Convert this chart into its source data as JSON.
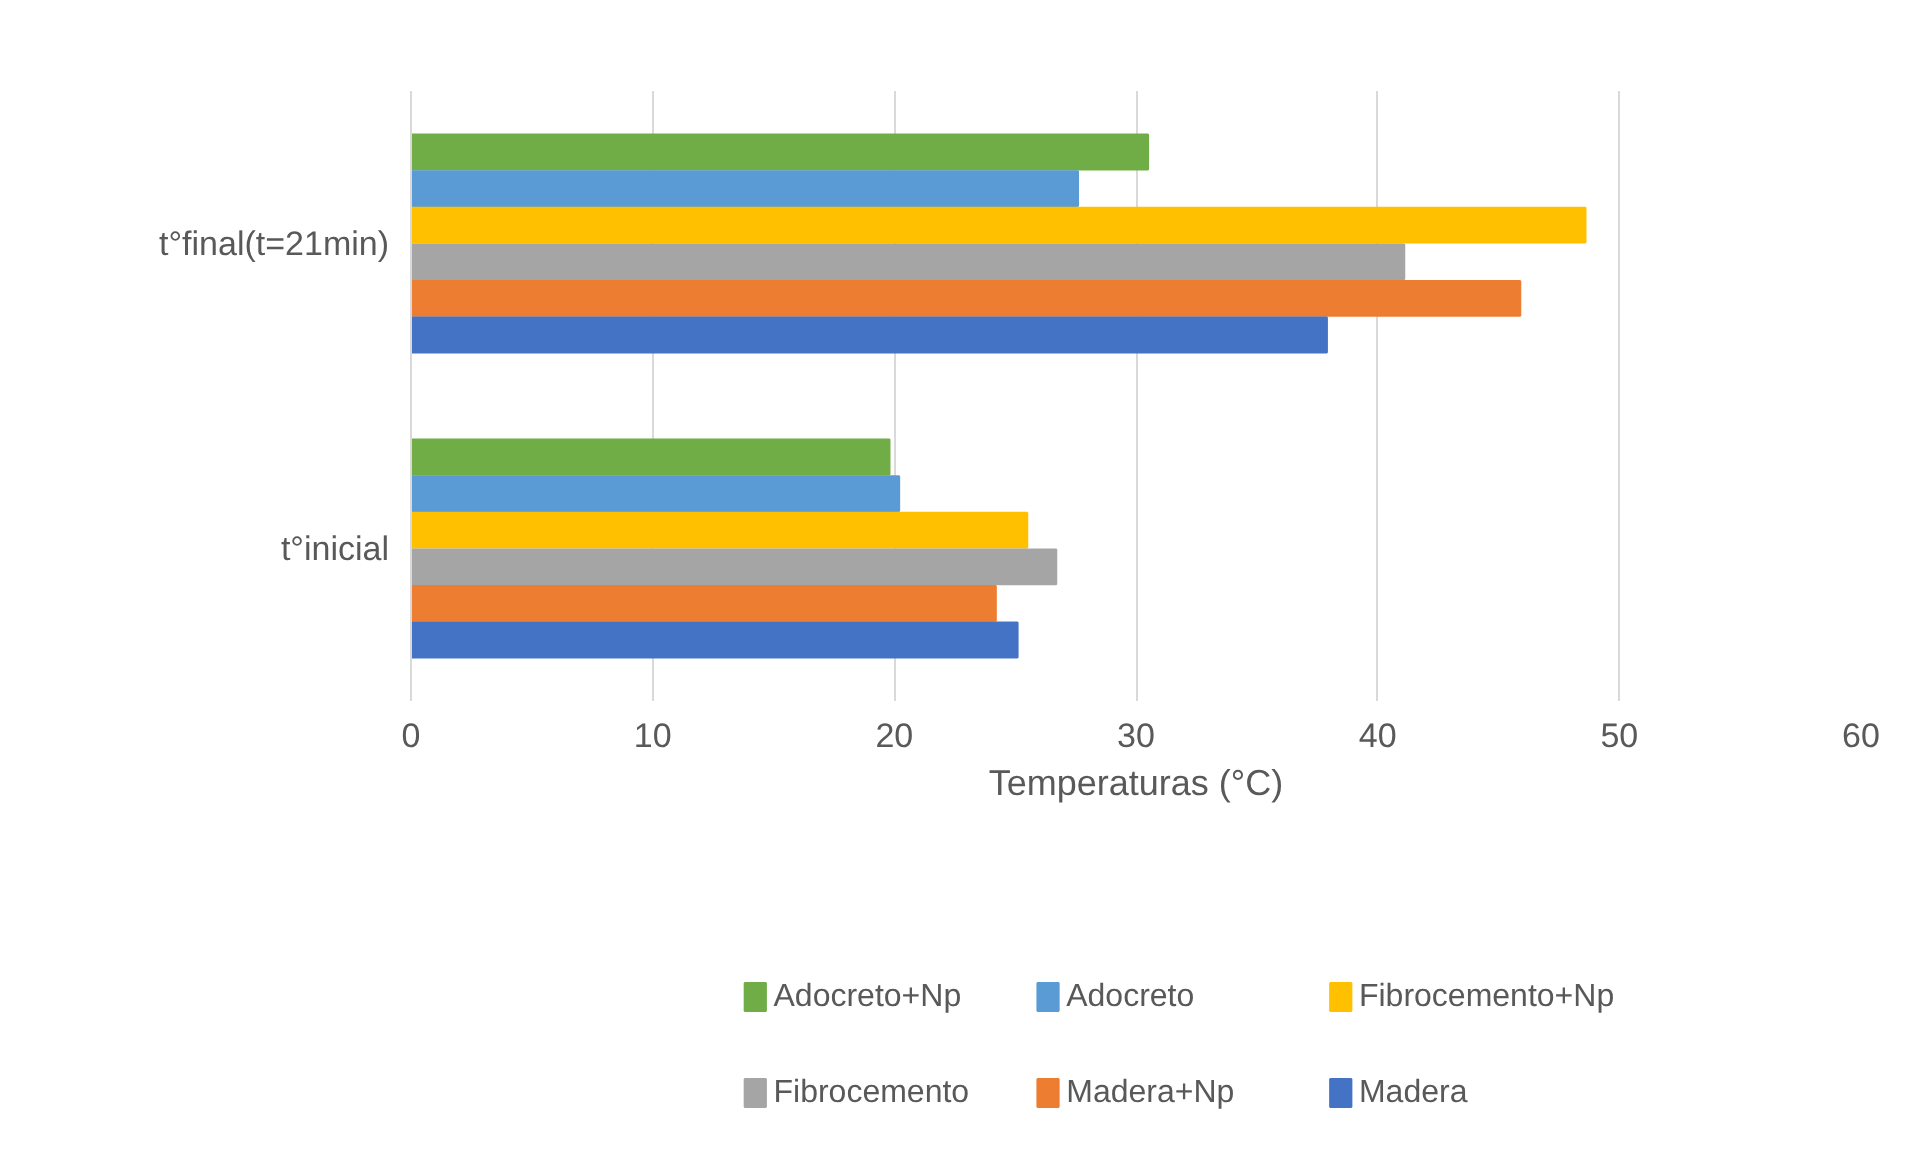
{
  "chart_data": {
    "type": "bar",
    "orientation": "horizontal",
    "xlabel": "Temperaturas (°C)",
    "categories": [
      "t°final(t=21min)",
      "t°inicial"
    ],
    "series": [
      {
        "name": "Adocreto+Np",
        "color": "#70ad47",
        "values": [
          30.5,
          19.8
        ]
      },
      {
        "name": "Adocreto",
        "color": "#5b9bd5",
        "values": [
          27.6,
          20.2
        ]
      },
      {
        "name": "Fibrocemento+Np",
        "color": "#ffc000",
        "values": [
          48.6,
          25.5
        ]
      },
      {
        "name": "Fibrocemento",
        "color": "#a5a5a5",
        "values": [
          41.1,
          26.7
        ]
      },
      {
        "name": "Madera+Np",
        "color": "#ed7d31",
        "values": [
          45.9,
          24.2
        ]
      },
      {
        "name": "Madera",
        "color": "#4472c4",
        "values": [
          37.9,
          25.1
        ]
      }
    ],
    "xlim": [
      0,
      60
    ],
    "xticks": [
      0,
      10,
      20,
      30,
      40,
      50,
      60
    ],
    "grid": "x",
    "legend": "bottom"
  }
}
